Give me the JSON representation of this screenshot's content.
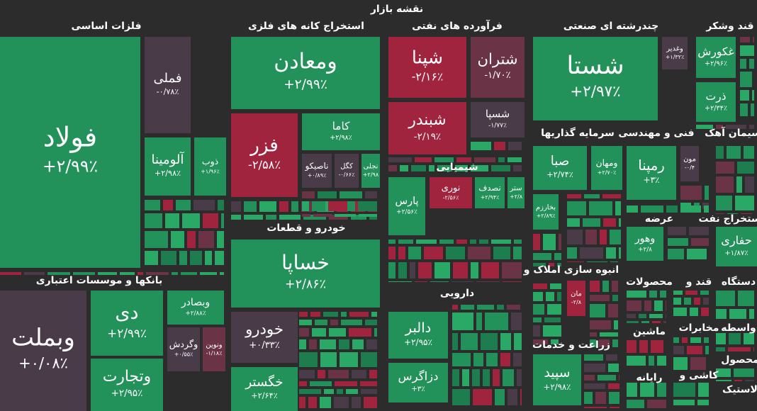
{
  "header": {
    "title": "نقشه بازار"
  },
  "sectors": [
    {
      "label": "فلزات اساسی"
    },
    {
      "label": "استخراج کانه های فلزی"
    },
    {
      "label": "فرآورده های نفتی"
    },
    {
      "label": "چندرشته ای صنعتی"
    },
    {
      "label": "قند وشکر"
    },
    {
      "label": "بانکها و موسسات اعتباری"
    },
    {
      "label": "خودرو و قطعات"
    },
    {
      "label": "شیمیایی"
    },
    {
      "label": "دارویی"
    },
    {
      "label": "سرمایه گذاریها"
    },
    {
      "label": "فنی و مهندسی"
    },
    {
      "label": "سیمان آهک"
    },
    {
      "label": "عرضه"
    },
    {
      "label": "استخراج نفت"
    },
    {
      "label": "انبوه سازی املاک و"
    },
    {
      "label": "محصولات"
    },
    {
      "label": "قند و"
    },
    {
      "label": "دستگاه"
    },
    {
      "label": "زراعت و خدمات"
    },
    {
      "label": "ماشین"
    },
    {
      "label": "مخابرات"
    },
    {
      "label": "واسطه"
    },
    {
      "label": "رایانه"
    },
    {
      "label": "کاشی و"
    },
    {
      "label": "محصول"
    },
    {
      "label": "لاستیک"
    }
  ],
  "tiles": [
    {
      "name": "فولاد",
      "change": "+۲/۹۹٪"
    },
    {
      "name": "فملی",
      "change": "-۰/۷۸٪"
    },
    {
      "name": "آلومینا",
      "change": "+۲/۹۸٪"
    },
    {
      "name": "ذوب",
      "change": "+۱/۹۶٪"
    },
    {
      "name": "ومعادن",
      "change": "+۲/۹۹٪"
    },
    {
      "name": "فزر",
      "change": "-۲/۵۸٪"
    },
    {
      "name": "کاما",
      "change": "+۲/۹۸٪"
    },
    {
      "name": "ناصیکو",
      "change": "+۰/۸۹٪"
    },
    {
      "name": "کگل",
      "change": "-۰/۶۶٪"
    },
    {
      "name": "نجلی",
      "change": "+۲/۹۸"
    },
    {
      "name": "شپنا",
      "change": "-۲/۱۶٪"
    },
    {
      "name": "شتران",
      "change": "-۱/۷۰٪"
    },
    {
      "name": "شبندر",
      "change": "-۲/۱۹٪"
    },
    {
      "name": "شسپا",
      "change": "-۱/۷۷٪"
    },
    {
      "name": "شستا",
      "change": "+۲/۹۷٪"
    },
    {
      "name": "وغدیر",
      "change": "+۱/۳۲٪"
    },
    {
      "name": "غکورش",
      "change": "+۲/۹۶٪"
    },
    {
      "name": "ذرت",
      "change": "+۲/۳۴٪"
    },
    {
      "name": "وبملت",
      "change": "+۰/۰۸٪"
    },
    {
      "name": "دی",
      "change": "+۲/۹۹٪"
    },
    {
      "name": "وبصادر",
      "change": "+۲/۸۸٪"
    },
    {
      "name": "وگردش",
      "change": "+۰/۵۵٪"
    },
    {
      "name": "ونوین",
      "change": "-۱/۱۸٪"
    },
    {
      "name": "وتجارت",
      "change": "+۲/۹۵٪"
    },
    {
      "name": "خساپا",
      "change": "+۲/۸۶٪"
    },
    {
      "name": "خودرو",
      "change": "+۰/۳۳٪"
    },
    {
      "name": "خگستر",
      "change": "+۲/۶۴٪"
    },
    {
      "name": "پارس",
      "change": "+۲/۵۶٪"
    },
    {
      "name": "نوری",
      "change": "-۲/۵۶٪"
    },
    {
      "name": "نصدف",
      "change": "+۲/۹۴٪"
    },
    {
      "name": "ستر",
      "change": "+۲/۸"
    },
    {
      "name": "دالبر",
      "change": "+۲/۹۵٪"
    },
    {
      "name": "دزاگرس",
      "change": "+۳٪"
    },
    {
      "name": "صبا",
      "change": "+۲/۷۴٪"
    },
    {
      "name": "ومهان",
      "change": "+۲/۷۰٪"
    },
    {
      "name": "بخارزم",
      "change": "+۲/۸۹٪"
    },
    {
      "name": "رمپنا",
      "change": "+۳٪"
    },
    {
      "name": "مون",
      "change": "-۰/۴"
    },
    {
      "name": "حفاری",
      "change": "+۱/۸۷٪"
    },
    {
      "name": "وهور",
      "change": "+۲/۸"
    },
    {
      "name": "مان",
      "change": "-۲/۸"
    },
    {
      "name": "سپید",
      "change": "+۲/۹۸٪"
    }
  ]
}
